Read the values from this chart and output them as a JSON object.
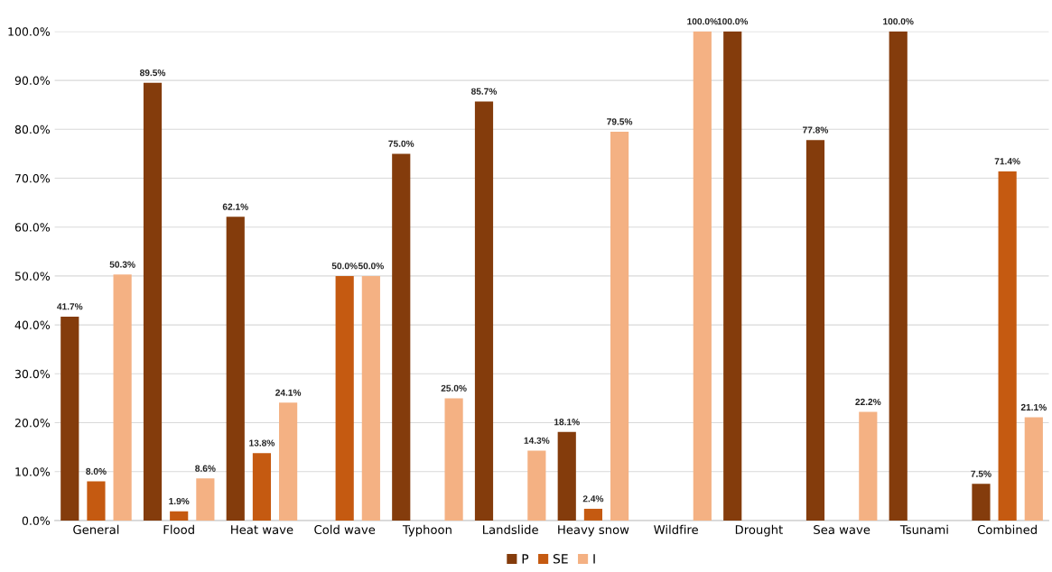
{
  "chart_data": {
    "type": "bar",
    "categories": [
      "General",
      "Flood",
      "Heat wave",
      "Cold wave",
      "Typhoon",
      "Landslide",
      "Heavy snow",
      "Wildfire",
      "Drought",
      "Sea wave",
      "Tsunami",
      "Combined"
    ],
    "series": [
      {
        "name": "P",
        "color": "#843c0c",
        "values": [
          41.7,
          89.5,
          62.1,
          null,
          75.0,
          85.7,
          18.1,
          null,
          100.0,
          77.8,
          100.0,
          7.5
        ],
        "value_labels": [
          "41.7%",
          "89.5%",
          "62.1%",
          null,
          "75.0%",
          "85.7%",
          "18.1%",
          null,
          "100.0%",
          "77.8%",
          "100.0%",
          "7.5%"
        ]
      },
      {
        "name": "SE",
        "color": "#c55a11",
        "values": [
          8.0,
          1.9,
          13.8,
          50.0,
          null,
          null,
          2.4,
          null,
          null,
          null,
          null,
          71.4
        ],
        "value_labels": [
          "8.0%",
          "1.9%",
          "13.8%",
          "50.0%",
          null,
          null,
          "2.4%",
          null,
          null,
          null,
          null,
          "71.4%"
        ]
      },
      {
        "name": "I",
        "color": "#f4b183",
        "values": [
          50.3,
          8.6,
          24.1,
          50.0,
          25.0,
          14.3,
          79.5,
          100.0,
          null,
          22.2,
          null,
          21.1
        ],
        "value_labels": [
          "50.3%",
          "8.6%",
          "24.1%",
          "50.0%",
          "25.0%",
          "14.3%",
          "79.5%",
          "100.0%",
          null,
          "22.2%",
          null,
          "21.1%"
        ]
      }
    ],
    "ylim": [
      0,
      100
    ],
    "yticks": [
      {
        "value": 0,
        "label": "0.0%"
      },
      {
        "value": 10,
        "label": "10.0%"
      },
      {
        "value": 20,
        "label": "20.0%"
      },
      {
        "value": 30,
        "label": "30.0%"
      },
      {
        "value": 40,
        "label": "40.0%"
      },
      {
        "value": 50,
        "label": "50.0%"
      },
      {
        "value": 60,
        "label": "60.0%"
      },
      {
        "value": 70,
        "label": "70.0%"
      },
      {
        "value": 80,
        "label": "80.0%"
      },
      {
        "value": 90,
        "label": "90.0%"
      },
      {
        "value": 100,
        "label": "100.0%"
      }
    ],
    "grid": "y",
    "legend": "bottom"
  }
}
